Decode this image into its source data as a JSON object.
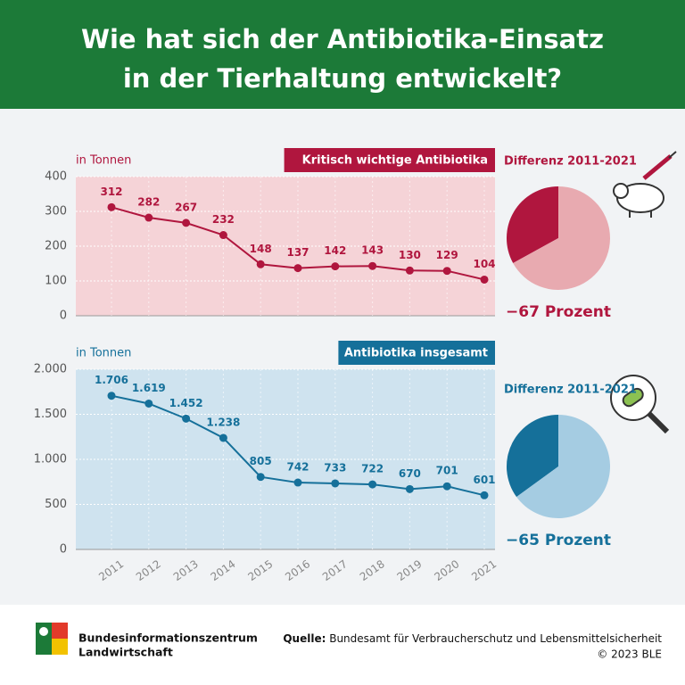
{
  "header": {
    "title": [
      "Wie hat sich der Antibiotika-Einsatz",
      "in der Tierhaltung entwickelt?"
    ]
  },
  "chart_data": [
    {
      "type": "line",
      "title": "Kritisch wichtige Antibiotika",
      "ylabel": "in Tonnen",
      "categories": [
        null,
        null,
        null,
        null,
        null,
        null,
        null,
        null,
        null,
        null,
        null
      ],
      "values": [
        312,
        282,
        267,
        232,
        148,
        137,
        142,
        143,
        130,
        129,
        104
      ],
      "color": "#b0163e",
      "background": "#f5d3d7",
      "ylim": [
        0,
        400
      ],
      "yticks": [
        0,
        100,
        200,
        300,
        400
      ],
      "grid": true
    },
    {
      "type": "line",
      "title": "Antibiotika insgesamt",
      "ylabel": "in Tonnen",
      "categories": [
        "2011",
        "2012",
        "2013",
        "2014",
        "2015",
        "2016",
        "2017",
        "2018",
        "2019",
        "2020",
        "2021"
      ],
      "values": [
        1706,
        1619,
        1452,
        1238,
        805,
        742,
        733,
        722,
        670,
        701,
        601
      ],
      "value_labels": [
        "1.706",
        "1.619",
        "1.452",
        "1.238",
        "805",
        "742",
        "733",
        "722",
        "670",
        "701",
        "601"
      ],
      "color": "#15709a",
      "background": "#cfe3ef",
      "ylim": [
        0,
        2000
      ],
      "yticks": [
        0,
        500,
        {
          "value": 1000,
          "label": "1.000"
        },
        {
          "value": 1500,
          "label": "1.500"
        },
        {
          "value": 2000,
          "label": "2.000"
        }
      ],
      "grid": true
    },
    {
      "type": "pie",
      "title": "Differenz 2011-2021",
      "values": [
        33,
        67
      ],
      "colors": [
        "#b0163e",
        "#e8aab0"
      ],
      "annotation": "−67 Prozent"
    },
    {
      "type": "pie",
      "title": "Differenz 2011-2021",
      "values": [
        35,
        65
      ],
      "colors": [
        "#15709a",
        "#a5cce2"
      ],
      "annotation": "−65 Prozent"
    }
  ],
  "footer": {
    "organisation": [
      "Bundesinformationszentrum",
      "Landwirtschaft"
    ],
    "source_label": "Quelle:",
    "source": "Bundesamt für Verbraucherschutz und Lebensmittelsicherheit",
    "copyright": "© 2023 BLE"
  }
}
